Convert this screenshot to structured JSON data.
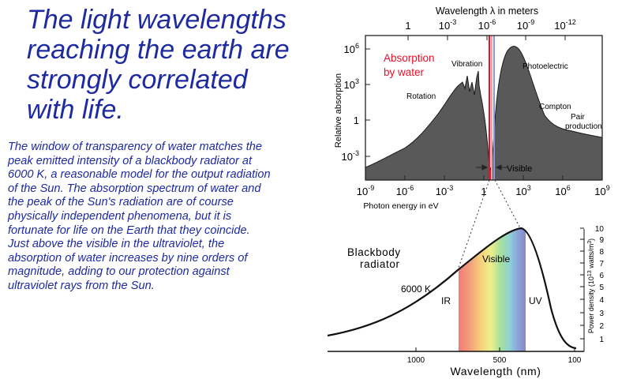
{
  "headline": [
    "The light wavelengths",
    "reaching the earth are",
    "strongly correlated",
    "with life."
  ],
  "body_text": [
    "The window of transparency of water matches the",
    "peak emitted intensity of a blackbody radiator at",
    "6000 K, a reasonable model for the output radiation",
    "of the Sun. The absorption spectrum of water and",
    "the peak of the Sun's radiation are of course",
    "physically independent phenomena, but it is",
    "fortunate for life on the Earth that they coincide.",
    "Just above the visible in the ultraviolet, the",
    "absorption of water increases by nine orders of",
    "magnitude, adding to our protection against",
    "ultraviolet rays from the Sun."
  ],
  "absorption_chart": {
    "top_axis_title": "Wavelength λ in meters",
    "top_ticks": [
      {
        "base": "1",
        "exp": ""
      },
      {
        "base": "10",
        "exp": "-3"
      },
      {
        "base": "10",
        "exp": "-6"
      },
      {
        "base": "10",
        "exp": "-9"
      },
      {
        "base": "10",
        "exp": "-12"
      }
    ],
    "y_label": "Relative  absorption",
    "y_ticks": [
      {
        "base": "10",
        "exp": "6"
      },
      {
        "base": "10",
        "exp": "3"
      },
      {
        "base": "1",
        "exp": ""
      },
      {
        "base": "10",
        "exp": "-3"
      }
    ],
    "x_ticks": [
      {
        "base": "10",
        "exp": "-9"
      },
      {
        "base": "10",
        "exp": "-6"
      },
      {
        "base": "10",
        "exp": "-3"
      },
      {
        "base": "1",
        "exp": ""
      },
      {
        "base": "10",
        "exp": "3"
      },
      {
        "base": "10",
        "exp": "6"
      },
      {
        "base": "10",
        "exp": "9"
      }
    ],
    "x_label": "Photon energy in eV",
    "absorption_label_1": "Absorption",
    "absorption_label_2": "by water",
    "labels": {
      "rotation": "Rotation",
      "vibration": "Vibration",
      "photoelectric": "Photoelectric",
      "compton": "Compton",
      "pair_1": "Pair",
      "pair_2": "production",
      "visible": "Visible"
    },
    "colors": {
      "fill": "#595959",
      "absorption_text": "#e8102a"
    }
  },
  "blackbody_chart": {
    "title_1": "Blackbody",
    "title_2": "radiator",
    "temperature": "6000 K",
    "ir": "IR",
    "uv": "UV",
    "visible": "Visible",
    "x_ticks": [
      "1000",
      "500",
      "100"
    ],
    "x_label": "Wavelength (nm)",
    "y_ticks": [
      "10",
      "9",
      "8",
      "7",
      "6",
      "5",
      "4",
      "3",
      "2",
      "1"
    ],
    "y_label_pre": "Power density (10",
    "y_label_exp1": "13",
    "y_label_mid": " watts/m",
    "y_label_exp2": "3",
    "y_label_post": ")"
  }
}
